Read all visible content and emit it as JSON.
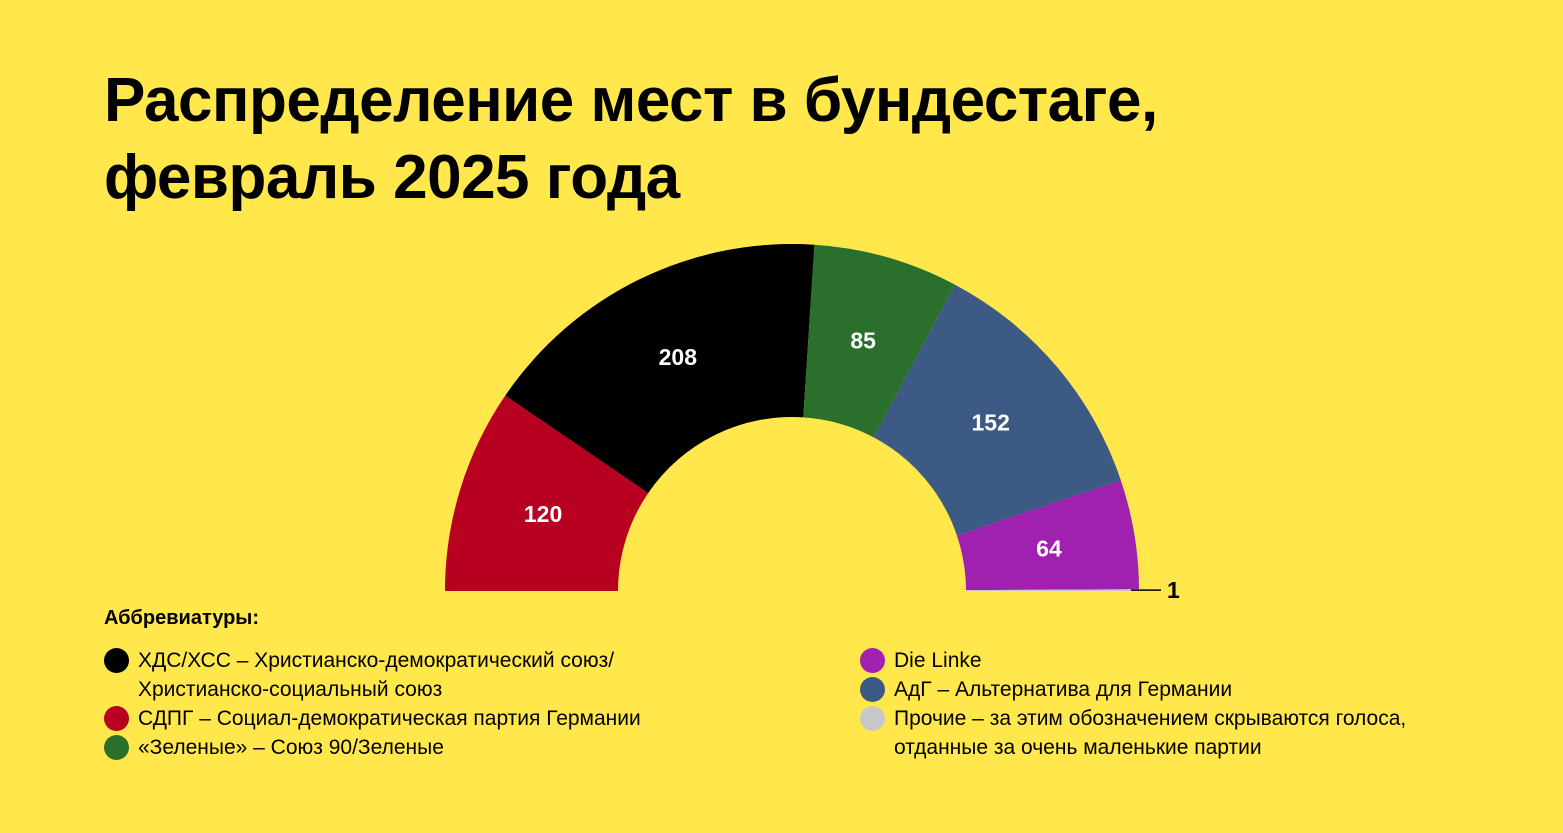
{
  "title": "Распределение мест в бундестаге, февраль 2025 года",
  "chart_data": {
    "type": "pie",
    "subtype": "semicircle",
    "title": "Распределение мест в бундестаге, февраль 2025 года",
    "series": [
      {
        "key": "spd",
        "value": 120,
        "label": "120",
        "color": "#B80020"
      },
      {
        "key": "cdu",
        "value": 208,
        "label": "208",
        "color": "#000000"
      },
      {
        "key": "greens",
        "value": 85,
        "label": "85",
        "color": "#2A6F2C"
      },
      {
        "key": "afd",
        "value": 152,
        "label": "152",
        "color": "#3D5A85"
      },
      {
        "key": "linke",
        "value": 64,
        "label": "64",
        "color": "#A020B0"
      },
      {
        "key": "other",
        "value": 1,
        "label": "1",
        "color": "#C8C8C8"
      }
    ]
  },
  "legend": {
    "heading": "Аббревиатуры:",
    "left": [
      {
        "color": "#000000",
        "text": "ХДС/ХСС – Христианско-демократический союз/",
        "text2": "Христианско-социальный союз"
      },
      {
        "color": "#B80020",
        "text": "СДПГ – Социал-демократическая партия Германии"
      },
      {
        "color": "#2A6F2C",
        "text": "«Зеленые» – Союз 90/Зеленые"
      }
    ],
    "right": [
      {
        "color": "#A020B0",
        "text": "Die Linke"
      },
      {
        "color": "#3D5A85",
        "text": "АдГ – Альтернатива для Германии"
      },
      {
        "color": "#C8C8C8",
        "text": "Прочие – за этим обозначением скрываются голоса,",
        "text2": "отданные за очень маленькие партии"
      }
    ]
  }
}
